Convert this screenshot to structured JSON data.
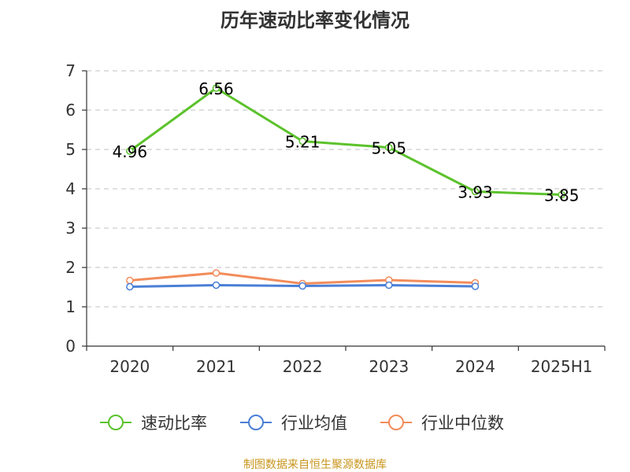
{
  "title": "历年速动比率变化情况",
  "source": "制图数据来自恒生聚源数据库",
  "colors": {
    "grid": "#cccccc",
    "axis": "#333333",
    "source": "#c8961e"
  },
  "chart_data": {
    "type": "line",
    "categories": [
      "2020",
      "2021",
      "2022",
      "2023",
      "2024",
      "2025H1"
    ],
    "ylim": [
      0,
      7
    ],
    "yticks": [
      0,
      1,
      2,
      3,
      4,
      5,
      6,
      7
    ],
    "grid": true,
    "legend_position": "bottom",
    "series": [
      {
        "name": "速动比率",
        "color": "#5cc22c",
        "values": [
          4.96,
          6.56,
          5.21,
          5.05,
          3.93,
          3.85
        ],
        "labels": [
          "4.96",
          "6.56",
          "5.21",
          "5.05",
          "3.93",
          "3.85"
        ]
      },
      {
        "name": "行业均值",
        "color": "#4a7fd6",
        "values": [
          1.51,
          1.55,
          1.53,
          1.55,
          1.52,
          null
        ]
      },
      {
        "name": "行业中位数",
        "color": "#f28c5b",
        "values": [
          1.67,
          1.86,
          1.59,
          1.68,
          1.61,
          null
        ]
      }
    ]
  }
}
